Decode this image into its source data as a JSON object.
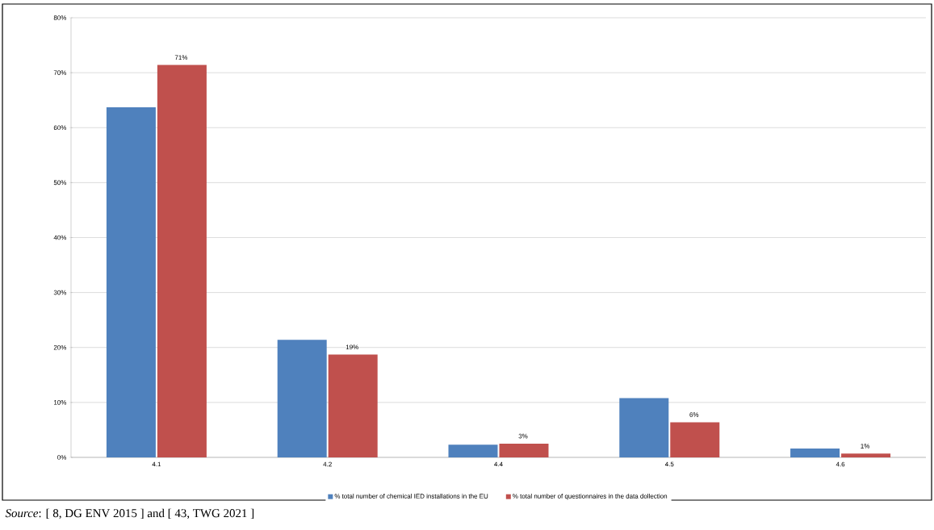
{
  "chart_data": {
    "type": "bar",
    "categories": [
      "4.1",
      "4.2",
      "4.4",
      "4.5",
      "4.6"
    ],
    "series": [
      {
        "name": "% total number of chemical IED installations in the EU",
        "color": "#4f81bd",
        "values": [
          63.7,
          21.4,
          2.3,
          10.8,
          1.6
        ]
      },
      {
        "name": "% total number of questionnaires in the data dollection",
        "color": "#c0504d",
        "values": [
          71.4,
          18.7,
          2.5,
          6.4,
          0.7
        ],
        "value_labels": [
          "71%",
          "19%",
          "3%",
          "6%",
          "1%"
        ]
      }
    ],
    "ylim": [
      0,
      80
    ],
    "yticks": [
      {
        "value": 0,
        "label": "0%"
      },
      {
        "value": 10,
        "label": "10%"
      },
      {
        "value": 20,
        "label": "20%"
      },
      {
        "value": 30,
        "label": "30%"
      },
      {
        "value": 40,
        "label": "40%"
      },
      {
        "value": 50,
        "label": "50%"
      },
      {
        "value": 60,
        "label": "60%"
      },
      {
        "value": 70,
        "label": "70%"
      },
      {
        "value": 80,
        "label": "80%"
      }
    ],
    "grid": "y",
    "legend": "bottom",
    "annotations": [
      "*Source*: [ 8, DG ENV 2015 ] and [ 43, TWG 2021 ]"
    ]
  }
}
